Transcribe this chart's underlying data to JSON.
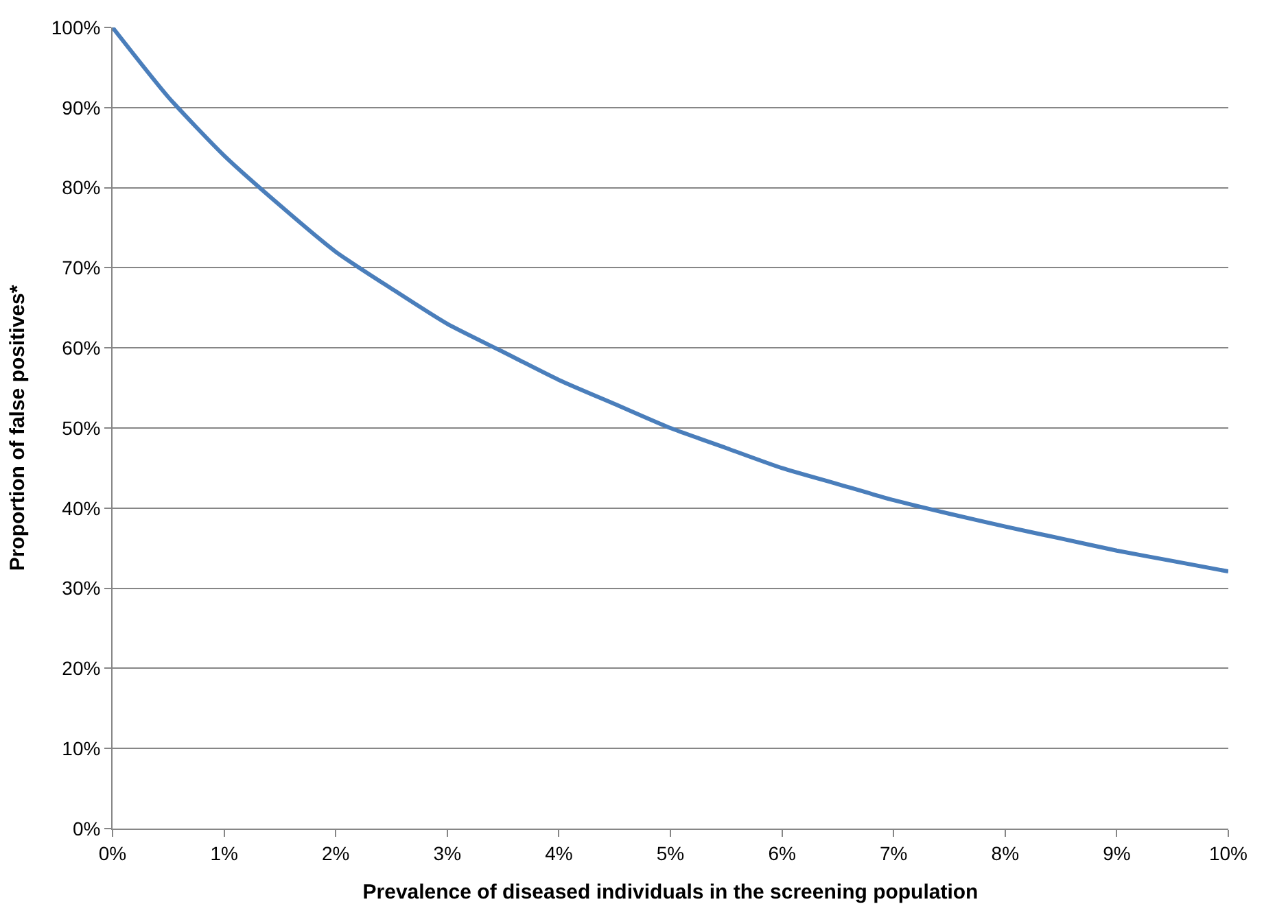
{
  "chart_data": {
    "type": "line",
    "xlabel": "Prevalence of diseased individuals in the screening population",
    "ylabel": "Proportion of false positives*",
    "x": [
      0,
      0.5,
      1,
      1.5,
      2,
      2.5,
      3,
      3.5,
      4,
      4.5,
      5,
      5.5,
      6,
      6.5,
      7,
      7.5,
      8,
      8.5,
      9,
      9.5,
      10
    ],
    "series": [
      {
        "color": "#4a7ebb",
        "values": [
          100,
          91.3,
          84,
          77.8,
          72,
          67.4,
          63,
          59.5,
          56,
          53,
          50,
          47.5,
          45,
          43,
          41,
          39.3,
          37.7,
          36.2,
          34.7,
          33.4,
          32.1
        ]
      }
    ],
    "xlim": [
      0,
      10
    ],
    "xticks": [
      {
        "value": 0,
        "label": "0%"
      },
      {
        "value": 1,
        "label": "1%"
      },
      {
        "value": 2,
        "label": "2%"
      },
      {
        "value": 3,
        "label": "3%"
      },
      {
        "value": 4,
        "label": "4%"
      },
      {
        "value": 5,
        "label": "5%"
      },
      {
        "value": 6,
        "label": "6%"
      },
      {
        "value": 7,
        "label": "7%"
      },
      {
        "value": 8,
        "label": "8%"
      },
      {
        "value": 9,
        "label": "9%"
      },
      {
        "value": 10,
        "label": "10%"
      }
    ],
    "ylim": [
      0,
      100
    ],
    "yticks": [
      {
        "value": 0,
        "label": "0%"
      },
      {
        "value": 10,
        "label": "10%"
      },
      {
        "value": 20,
        "label": "20%"
      },
      {
        "value": 30,
        "label": "30%"
      },
      {
        "value": 40,
        "label": "40%"
      },
      {
        "value": 50,
        "label": "50%"
      },
      {
        "value": 60,
        "label": "60%"
      },
      {
        "value": 70,
        "label": "70%"
      },
      {
        "value": 80,
        "label": "80%"
      },
      {
        "value": 90,
        "label": "90%"
      },
      {
        "value": 100,
        "label": "100%"
      }
    ],
    "grid": "y",
    "marker": "none",
    "line_style": "solid"
  }
}
